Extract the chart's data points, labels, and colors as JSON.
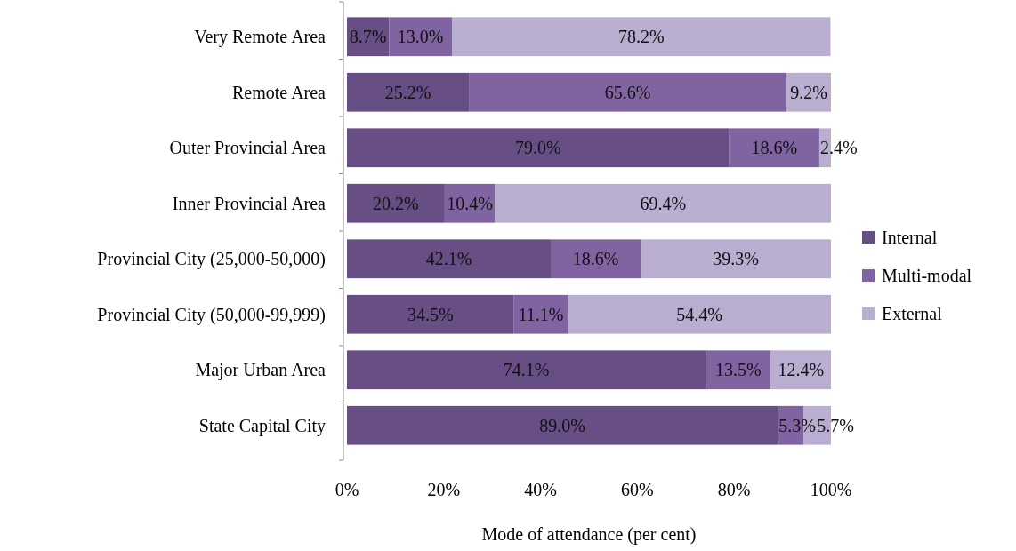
{
  "chart_data": {
    "type": "bar",
    "orientation": "horizontal",
    "stacked": true,
    "xlabel": "Mode of attendance (per cent)",
    "categories": [
      "Very Remote Area",
      "Remote Area",
      "Outer Provincial Area",
      "Inner Provincial Area",
      "Provincial City (25,000-50,000)",
      "Provincial City (50,000-99,999)",
      "Major Urban Area",
      "State Capital City"
    ],
    "series": [
      {
        "name": "Internal",
        "color": "#674f86",
        "values": [
          8.7,
          25.2,
          79.0,
          20.2,
          42.1,
          34.5,
          74.1,
          89.0
        ],
        "value_labels": [
          "8.7%",
          "25.2%",
          "79.0%",
          "20.2%",
          "42.1%",
          "34.5%",
          "74.1%",
          "89.0%"
        ]
      },
      {
        "name": "Multi-modal",
        "color": "#8064a2",
        "values": [
          13.0,
          65.6,
          18.6,
          10.4,
          18.6,
          11.1,
          13.5,
          5.3
        ],
        "value_labels": [
          "13.0%",
          "65.6%",
          "18.6%",
          "10.4%",
          "18.6%",
          "11.1%",
          "13.5%",
          "5.3%"
        ]
      },
      {
        "name": "External",
        "color": "#b9add0",
        "values": [
          78.2,
          9.2,
          2.4,
          69.4,
          39.3,
          54.4,
          12.4,
          5.7
        ],
        "value_labels": [
          "78.2%",
          "9.2%",
          "2.4%",
          "69.4%",
          "39.3%",
          "54.4%",
          "12.4%",
          "5.7%"
        ]
      }
    ],
    "xlim": [
      0,
      100
    ],
    "xticks": [
      {
        "value": 0,
        "label": "0%"
      },
      {
        "value": 20,
        "label": "20%"
      },
      {
        "value": 40,
        "label": "40%"
      },
      {
        "value": 60,
        "label": "60%"
      },
      {
        "value": 80,
        "label": "80%"
      },
      {
        "value": 100,
        "label": "100%"
      }
    ],
    "legend": "right",
    "grid": false
  }
}
